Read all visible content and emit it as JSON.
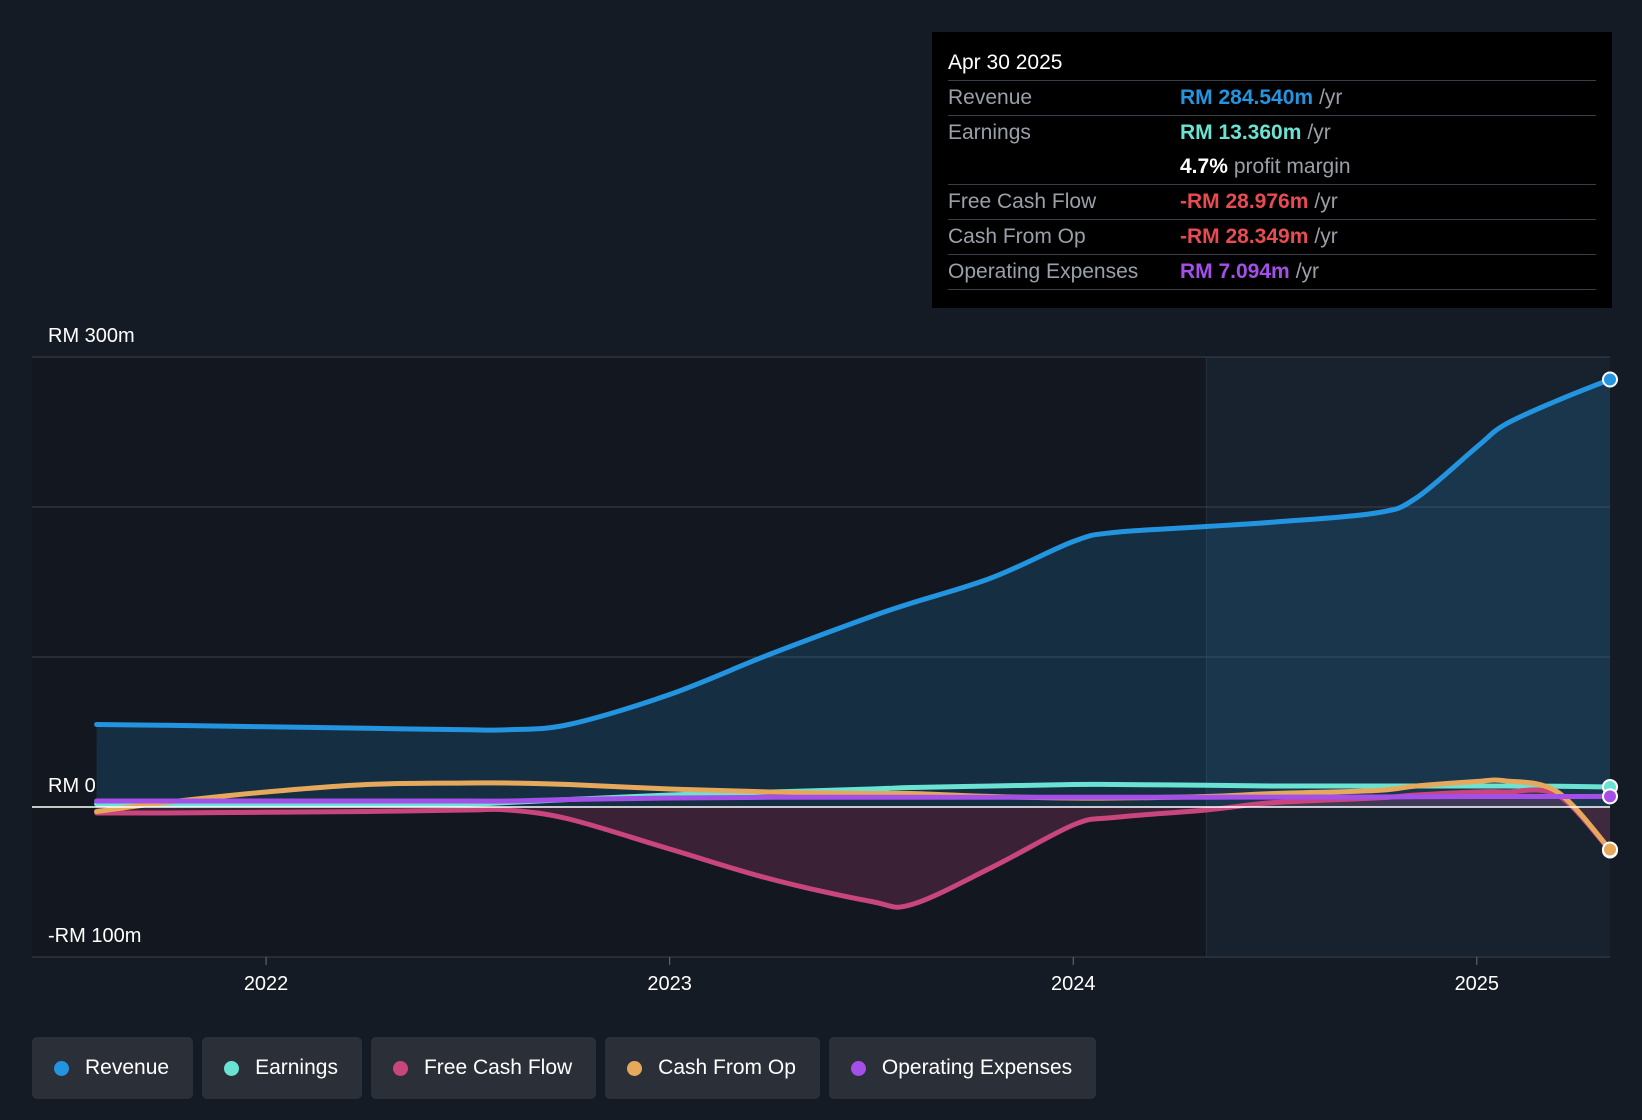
{
  "tooltip": {
    "date": "Apr 30 2025",
    "rows": [
      {
        "label": "Revenue",
        "value": "RM 284.540m",
        "unit": "/yr",
        "color": "#2394df"
      },
      {
        "label": "Earnings",
        "value": "RM 13.360m",
        "unit": "/yr",
        "color": "#6be3d3"
      },
      {
        "label": "",
        "value": "4.7%",
        "unit": "profit margin",
        "color": "#ffffff"
      },
      {
        "label": "Free Cash Flow",
        "value": "-RM 28.976m",
        "unit": "/yr",
        "color": "#e84b52"
      },
      {
        "label": "Cash From Op",
        "value": "-RM 28.349m",
        "unit": "/yr",
        "color": "#e84b52"
      },
      {
        "label": "Operating Expenses",
        "value": "RM 7.094m",
        "unit": "/yr",
        "color": "#a34fe8"
      }
    ]
  },
  "legend": [
    {
      "label": "Revenue",
      "color": "#2394df"
    },
    {
      "label": "Earnings",
      "color": "#6be3d3"
    },
    {
      "label": "Free Cash Flow",
      "color": "#c9457e"
    },
    {
      "label": "Cash From Op",
      "color": "#e6a95c"
    },
    {
      "label": "Operating Expenses",
      "color": "#a34fe8"
    }
  ],
  "chart_data": {
    "type": "line",
    "title": "",
    "xlabel": "",
    "ylabel": "",
    "y_tick_labels": [
      "RM 300m",
      "RM 0",
      "-RM 100m"
    ],
    "ylim": [
      -100,
      300
    ],
    "x_tick_labels": [
      "2022",
      "2023",
      "2024",
      "2025"
    ],
    "xlim": [
      2021.42,
      2025.33
    ],
    "grid": true,
    "x": [
      2021.58,
      2021.75,
      2022.0,
      2022.25,
      2022.5,
      2022.6,
      2022.75,
      2023.0,
      2023.25,
      2023.5,
      2023.6,
      2023.8,
      2024.0,
      2024.1,
      2024.33,
      2024.5,
      2024.75,
      2024.85,
      2025.0,
      2025.07,
      2025.2,
      2025.33
    ],
    "series": [
      {
        "name": "Revenue",
        "color": "#2394df",
        "values": [
          55,
          54.5,
          53.5,
          52.5,
          51.5,
          51.5,
          55,
          75,
          102,
          127,
          136,
          153,
          177,
          183,
          187,
          190,
          196,
          206,
          240,
          255,
          271,
          285
        ]
      },
      {
        "name": "Earnings",
        "color": "#6be3d3",
        "values": [
          2,
          2,
          1.5,
          1.5,
          2,
          3,
          5,
          8,
          10,
          12,
          13,
          14,
          15,
          15,
          14.5,
          14,
          14,
          14,
          14,
          14,
          13.8,
          13.36
        ]
      },
      {
        "name": "Free Cash Flow",
        "color": "#c9457e",
        "values": [
          -4,
          -4,
          -3.5,
          -3,
          -2,
          -2,
          -8,
          -28,
          -48,
          -63,
          -65,
          -40,
          -12,
          -7,
          -2,
          3,
          6,
          8,
          10,
          10,
          8,
          -28.98
        ]
      },
      {
        "name": "Cash From Op",
        "color": "#e6a95c",
        "values": [
          -3,
          3,
          10,
          15,
          16,
          16,
          15,
          12,
          10,
          9,
          9,
          7,
          6,
          6,
          7,
          9,
          11,
          14,
          17,
          17.5,
          10,
          -28.35
        ]
      },
      {
        "name": "Operating Expenses",
        "color": "#a34fe8",
        "values": [
          4,
          4,
          4,
          4,
          4,
          4,
          5,
          6,
          6.5,
          6.5,
          6.5,
          6.5,
          6.5,
          6.5,
          6.5,
          6.6,
          6.7,
          6.8,
          7,
          7,
          7,
          7.09
        ]
      }
    ]
  }
}
